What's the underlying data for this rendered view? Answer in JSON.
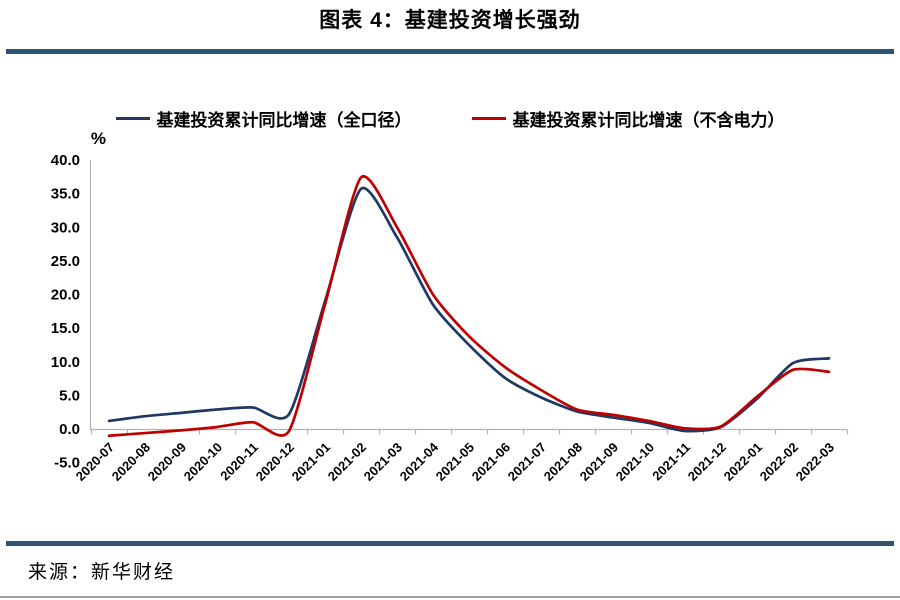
{
  "title": "图表 4：基建投资增长强劲",
  "source": {
    "label": "来源：新华财经"
  },
  "colors": {
    "divider_navy": "#2e5674",
    "footer_gray": "#a0a0a0",
    "axis_gray": "#b3b3b3",
    "label_black": "#000000"
  },
  "chart_data": {
    "type": "line",
    "title": "图表 4：基建投资增长强劲",
    "unit_label": "%",
    "xlabel": "",
    "ylabel": "%",
    "ylim": [
      -5,
      40
    ],
    "grid": false,
    "legend_position": "top-center",
    "smoothed_lines": true,
    "categories": [
      "2020-07",
      "2020-08",
      "2020-09",
      "2020-10",
      "2020-11",
      "2020-12",
      "2021-01",
      "2021-02",
      "2021-03",
      "2021-04",
      "2021-05",
      "2021-06",
      "2021-07",
      "2021-08",
      "2021-09",
      "2021-10",
      "2021-11",
      "2021-12",
      "2022-01",
      "2022-02",
      "2022-03"
    ],
    "y_tick_labels": [
      "40.0",
      "35.0",
      "30.0",
      "25.0",
      "20.0",
      "15.0",
      "10.0",
      "5.0",
      "0.0",
      "-5.0"
    ],
    "y_tick_values": [
      40,
      35,
      30,
      25,
      20,
      15,
      10,
      5,
      0,
      -5
    ],
    "series": [
      {
        "name": "基建投资累计同比增速（全口径）",
        "color": "#1f3864",
        "values": [
          1.2,
          1.9,
          2.4,
          2.9,
          3.2,
          2.2,
          19.0,
          35.7,
          28.5,
          18.5,
          12.5,
          7.6,
          4.7,
          2.6,
          1.7,
          0.9,
          -0.3,
          0.3,
          4.5,
          9.8,
          10.5
        ]
      },
      {
        "name": "基建投资累计同比增速（不含电力）",
        "color": "#c00000",
        "values": [
          -1.0,
          -0.6,
          -0.2,
          0.3,
          1.0,
          -0.3,
          18.5,
          37.4,
          30.0,
          20.0,
          13.8,
          9.2,
          5.8,
          2.9,
          2.1,
          1.2,
          0.1,
          0.4,
          4.8,
          8.8,
          8.5
        ]
      }
    ]
  }
}
